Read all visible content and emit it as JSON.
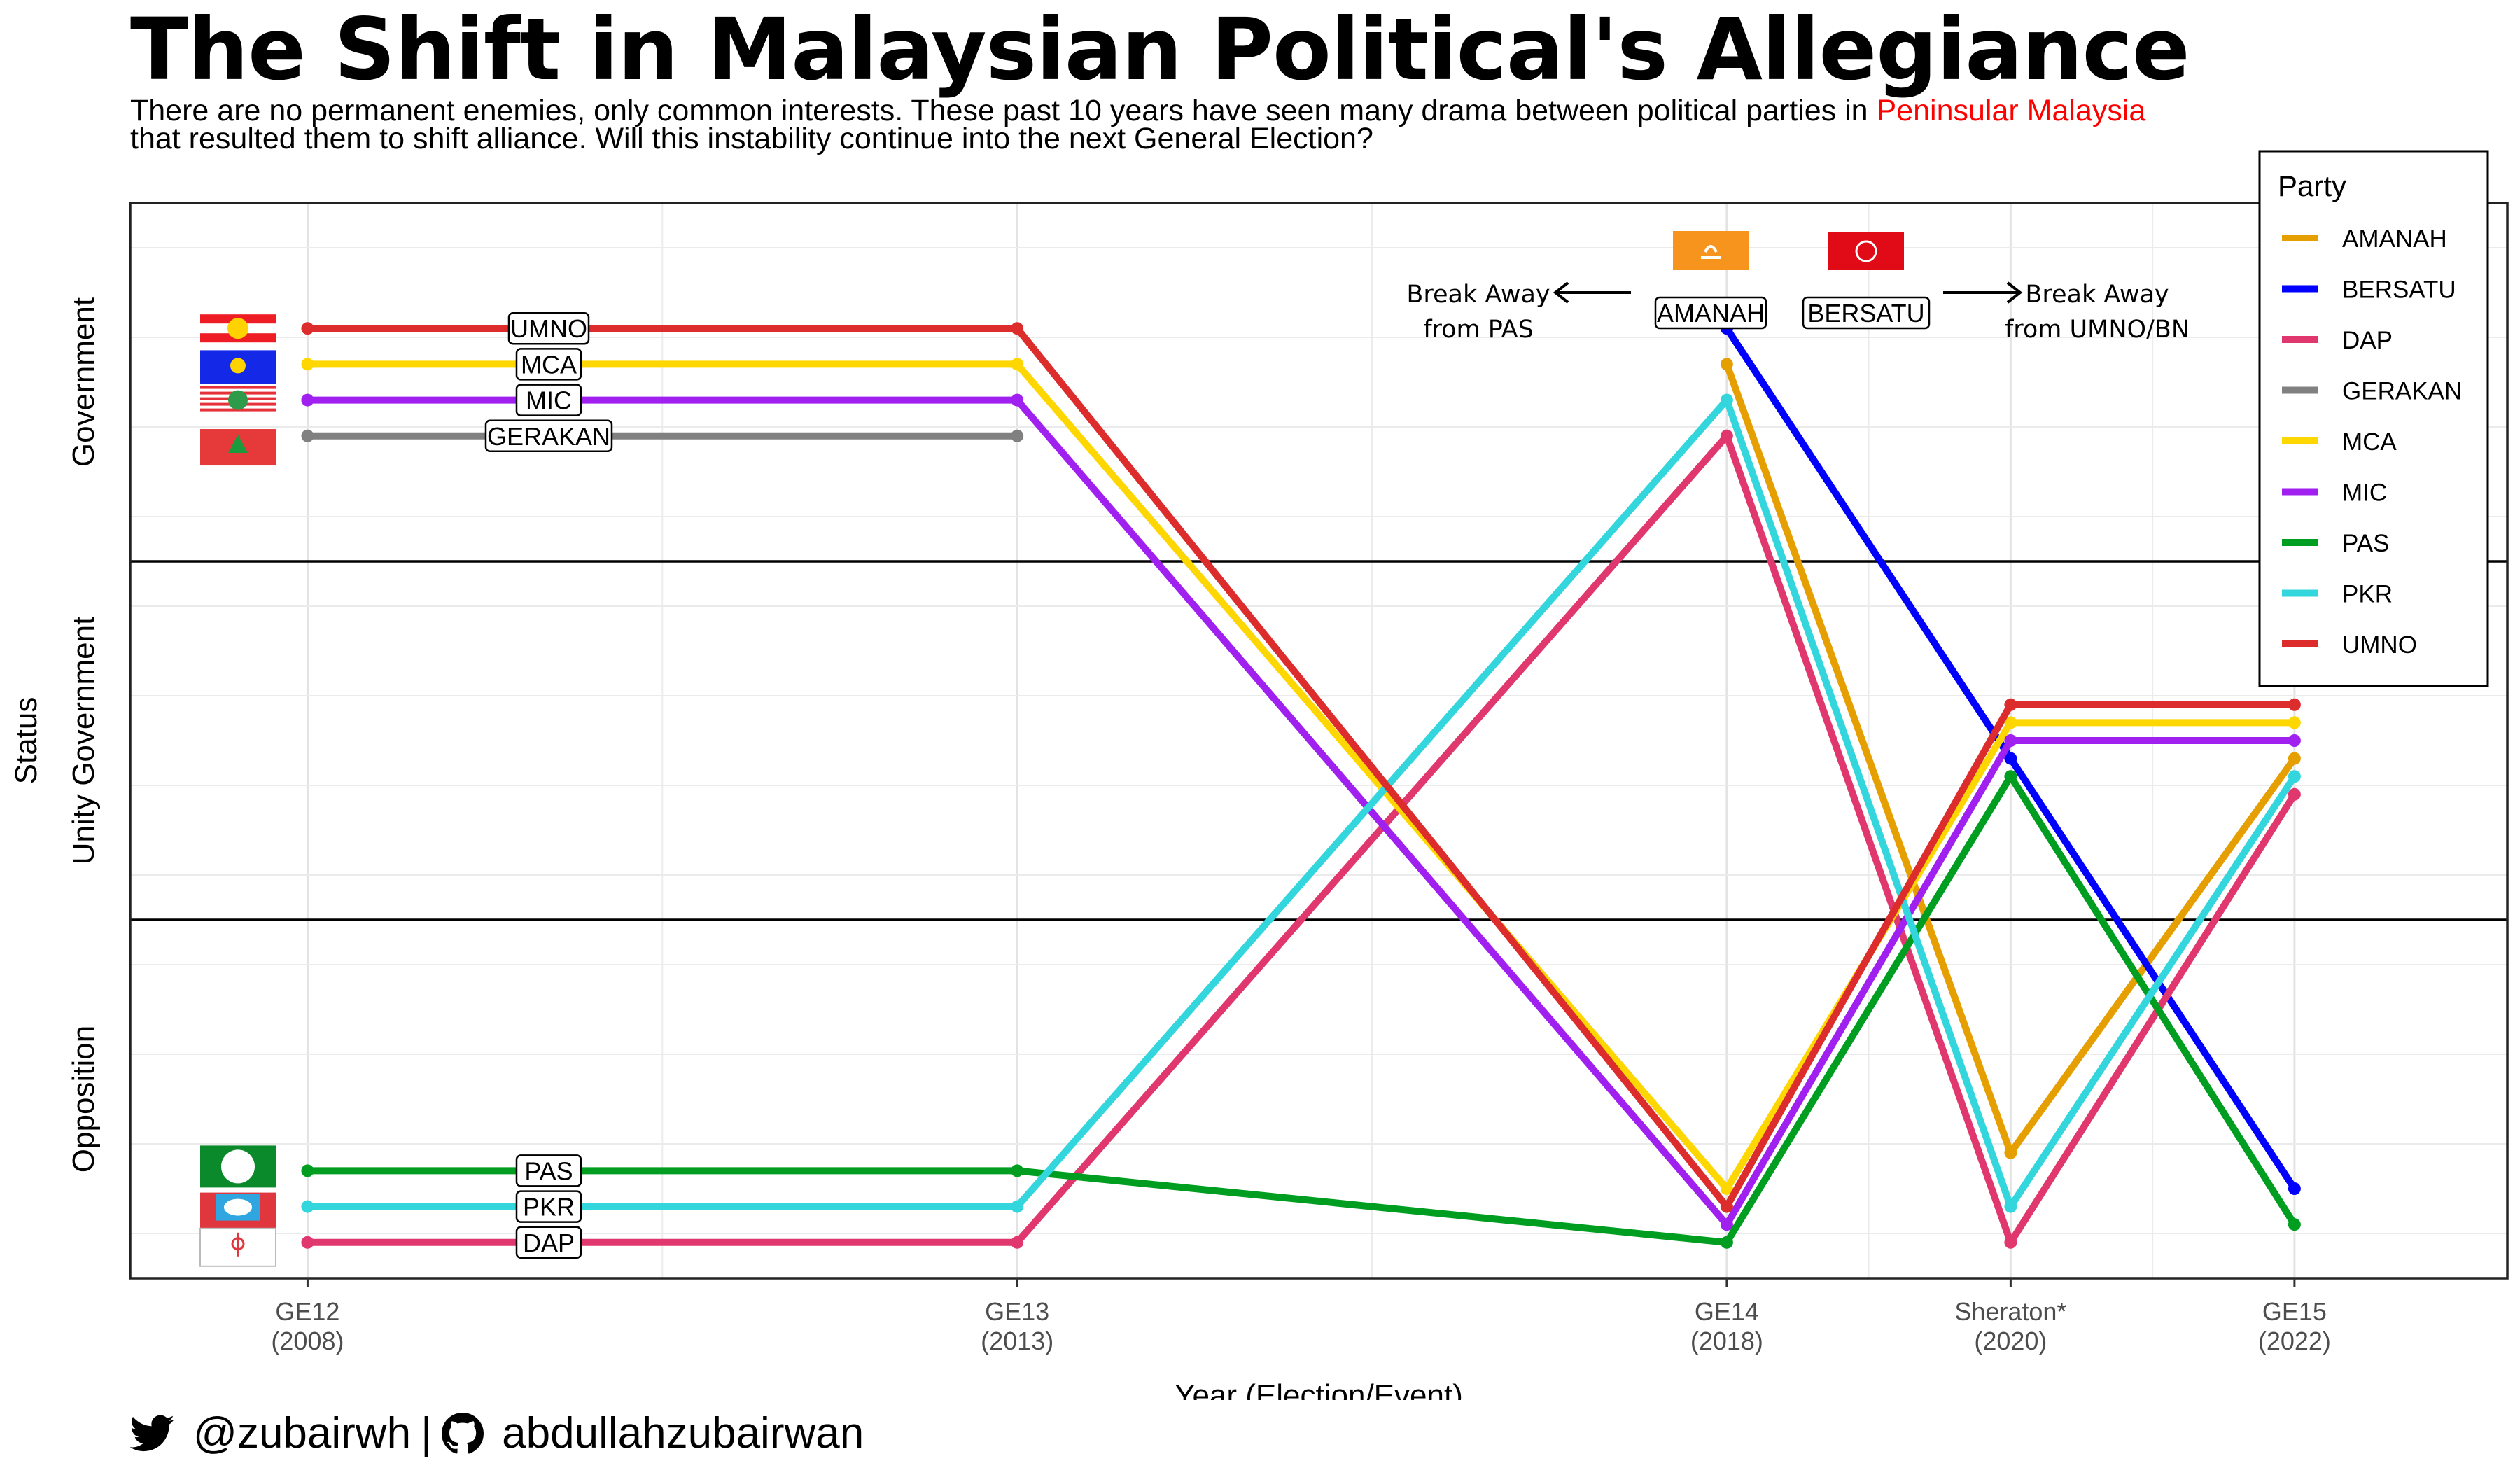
{
  "title": "The Shift in Malaysian Political's Allegiance",
  "subtitle": {
    "line1_before": "There are no permanent enemies, only common interests. These past 10 years have seen many drama between political parties in ",
    "line1_highlight": "Peninsular Malaysia",
    "line2": "that resulted them to shift alliance. Will this instability continue into the next General Election?"
  },
  "footer": {
    "twitter_handle": "@zubairwh",
    "separator": "|",
    "github_handle": "abdullahzubairwan",
    "icons": [
      "twitter-icon",
      "github-icon"
    ]
  },
  "chart_data": {
    "type": "line",
    "title": "The Shift in Malaysian Political's Allegiance",
    "xlabel": "Year (Election/Event)",
    "ylabel": "Status",
    "x_categories": [
      {
        "key": "GE12",
        "label": "GE12",
        "sublabel": "(2008)",
        "year": 2008
      },
      {
        "key": "GE13",
        "label": "GE13",
        "sublabel": "(2013)",
        "year": 2013
      },
      {
        "key": "GE14",
        "label": "GE14",
        "sublabel": "(2018)",
        "year": 2018
      },
      {
        "key": "Sheraton",
        "label": "Sheraton*",
        "sublabel": "(2020)",
        "year": 2020
      },
      {
        "key": "GE15",
        "label": "GE15",
        "sublabel": "(2022)",
        "year": 2022
      }
    ],
    "y_bands": [
      {
        "name": "Government",
        "range": [
          2,
          3
        ]
      },
      {
        "name": "Unity Government",
        "range": [
          1,
          2
        ]
      },
      {
        "name": "Opposition",
        "range": [
          0,
          1
        ]
      }
    ],
    "y_range": [
      -0.0,
      3.0
    ],
    "grid": true,
    "legend": {
      "title": "Party",
      "placement": "top-right"
    },
    "series": [
      {
        "name": "AMANAH",
        "color": "#E69F00",
        "points": [
          [
            2018,
            2.55
          ],
          [
            2020,
            0.35
          ],
          [
            2022,
            1.45
          ]
        ]
      },
      {
        "name": "BERSATU",
        "color": "#0000FF",
        "points": [
          [
            2018,
            2.65
          ],
          [
            2020,
            1.45
          ],
          [
            2022,
            0.25
          ]
        ]
      },
      {
        "name": "DAP",
        "color": "#E0376F",
        "points": [
          [
            2008,
            0.1
          ],
          [
            2013,
            0.1
          ],
          [
            2018,
            2.35
          ],
          [
            2020,
            0.1
          ],
          [
            2022,
            1.35
          ]
        ]
      },
      {
        "name": "GERAKAN",
        "color": "#808080",
        "points": [
          [
            2008,
            2.35
          ],
          [
            2013,
            2.35
          ]
        ]
      },
      {
        "name": "MCA",
        "color": "#FFD700",
        "points": [
          [
            2008,
            2.55
          ],
          [
            2013,
            2.55
          ],
          [
            2018,
            0.25
          ],
          [
            2020,
            1.55
          ],
          [
            2022,
            1.55
          ]
        ]
      },
      {
        "name": "MIC",
        "color": "#A020F0",
        "points": [
          [
            2008,
            2.45
          ],
          [
            2013,
            2.45
          ],
          [
            2018,
            0.15
          ],
          [
            2020,
            1.5
          ],
          [
            2022,
            1.5
          ]
        ]
      },
      {
        "name": "PAS",
        "color": "#009E20",
        "points": [
          [
            2008,
            0.3
          ],
          [
            2013,
            0.3
          ],
          [
            2018,
            0.1
          ],
          [
            2020,
            1.4
          ],
          [
            2022,
            0.15
          ]
        ]
      },
      {
        "name": "PKR",
        "color": "#33D6DD",
        "points": [
          [
            2008,
            0.2
          ],
          [
            2013,
            0.2
          ],
          [
            2018,
            2.45
          ],
          [
            2020,
            0.2
          ],
          [
            2022,
            1.4
          ]
        ]
      },
      {
        "name": "UMNO",
        "color": "#DD2C2C",
        "points": [
          [
            2008,
            2.65
          ],
          [
            2013,
            2.65
          ],
          [
            2018,
            0.2
          ],
          [
            2020,
            1.6
          ],
          [
            2022,
            1.6
          ]
        ]
      }
    ],
    "point_labels": [
      {
        "text": "UMNO",
        "x": 2008,
        "y": 2.65,
        "series": "UMNO"
      },
      {
        "text": "MCA",
        "x": 2008,
        "y": 2.55,
        "series": "MCA"
      },
      {
        "text": "MIC",
        "x": 2008,
        "y": 2.45,
        "series": "MIC"
      },
      {
        "text": "GERAKAN",
        "x": 2008,
        "y": 2.35,
        "series": "GERAKAN"
      },
      {
        "text": "PAS",
        "x": 2008,
        "y": 0.3,
        "series": "PAS"
      },
      {
        "text": "PKR",
        "x": 2008,
        "y": 0.2,
        "series": "PKR"
      },
      {
        "text": "DAP",
        "x": 2008,
        "y": 0.1,
        "series": "DAP"
      },
      {
        "text": "AMANAH",
        "x": 2018,
        "y": 2.65,
        "series": "AMANAH"
      },
      {
        "text": "BERSATU",
        "x": 2018,
        "y": 2.65,
        "series": "BERSATU"
      }
    ],
    "annotations": [
      {
        "text_line1": "Break Away",
        "text_line2": "from PAS",
        "refers_to": "AMANAH",
        "arrow": "left"
      },
      {
        "text_line1": "Break Away",
        "text_line2": "from UMNO/BN",
        "refers_to": "BERSATU",
        "arrow": "right"
      }
    ],
    "logos": [
      "UMNO",
      "MCA",
      "MIC",
      "GERAKAN",
      "PAS",
      "PKR",
      "DAP",
      "AMANAH",
      "BERSATU"
    ]
  }
}
